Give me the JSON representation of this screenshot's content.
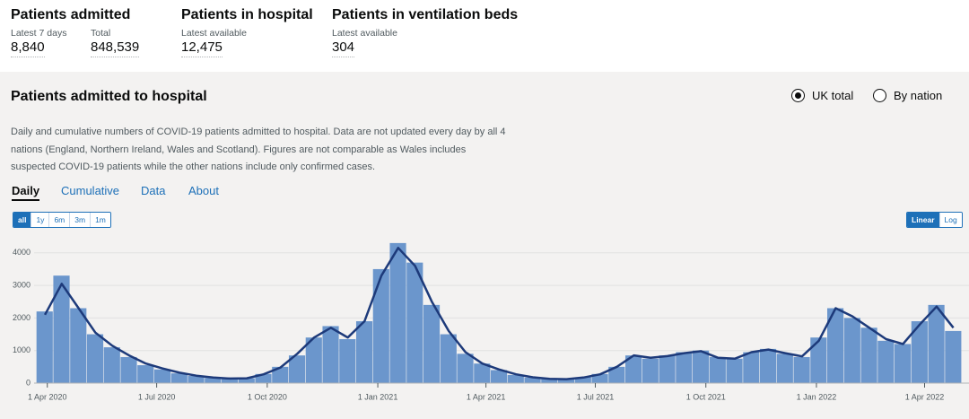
{
  "summary": [
    {
      "title": "Patients admitted",
      "items": [
        {
          "label": "Latest 7 days",
          "value": "8,840"
        },
        {
          "label": "Total",
          "value": "848,539"
        }
      ]
    },
    {
      "title": "Patients in hospital",
      "items": [
        {
          "label": "Latest available",
          "value": "12,475"
        }
      ]
    },
    {
      "title": "Patients in ventilation beds",
      "items": [
        {
          "label": "Latest available",
          "value": "304"
        }
      ]
    }
  ],
  "card": {
    "title": "Patients admitted to hospital",
    "options": [
      "UK total",
      "By nation"
    ],
    "selected_option": 0,
    "description": "Daily and cumulative numbers of COVID-19 patients admitted to hospital. Data are not updated every day by all 4 nations (England, Northern Ireland, Wales and Scotland). Figures are not comparable as Wales includes suspected COVID-19 patients while the other nations include only confirmed cases.",
    "tabs": [
      "Daily",
      "Cumulative",
      "Data",
      "About"
    ],
    "active_tab": 0,
    "timespans": [
      "all",
      "1y",
      "6m",
      "3m",
      "1m"
    ],
    "active_timespan": 0,
    "scales": [
      "Linear",
      "Log"
    ],
    "active_scale": 0
  },
  "chart_data": {
    "type": "bar",
    "x": [
      "2020-03-23",
      "2020-04-06",
      "2020-04-20",
      "2020-05-04",
      "2020-05-18",
      "2020-06-01",
      "2020-06-15",
      "2020-06-29",
      "2020-07-13",
      "2020-07-27",
      "2020-08-10",
      "2020-08-24",
      "2020-09-07",
      "2020-09-21",
      "2020-10-05",
      "2020-10-19",
      "2020-11-02",
      "2020-11-16",
      "2020-11-30",
      "2020-12-14",
      "2020-12-28",
      "2021-01-11",
      "2021-01-25",
      "2021-02-08",
      "2021-02-22",
      "2021-03-08",
      "2021-03-22",
      "2021-04-05",
      "2021-04-19",
      "2021-05-03",
      "2021-05-17",
      "2021-05-31",
      "2021-06-14",
      "2021-06-28",
      "2021-07-12",
      "2021-07-26",
      "2021-08-09",
      "2021-08-23",
      "2021-09-06",
      "2021-09-20",
      "2021-10-04",
      "2021-10-18",
      "2021-11-01",
      "2021-11-15",
      "2021-11-29",
      "2021-12-13",
      "2021-12-27",
      "2022-01-10",
      "2022-01-24",
      "2022-02-07",
      "2022-02-21",
      "2022-03-07",
      "2022-03-21",
      "2022-04-04",
      "2022-04-18"
    ],
    "series": [
      {
        "name": "Patients admitted",
        "color": "#6b96cc",
        "values": [
          2200,
          3300,
          2300,
          1500,
          1100,
          800,
          550,
          420,
          300,
          220,
          160,
          140,
          150,
          280,
          500,
          850,
          1400,
          1750,
          1350,
          1900,
          3500,
          4300,
          3700,
          2400,
          1500,
          900,
          600,
          400,
          250,
          170,
          130,
          130,
          180,
          280,
          500,
          850,
          750,
          850,
          950,
          1000,
          800,
          750,
          950,
          1050,
          900,
          800,
          1400,
          2300,
          2000,
          1700,
          1300,
          1200,
          1900,
          2400,
          1600
        ]
      },
      {
        "name": "7-day average",
        "color": "#1d3a7a",
        "values": [
          2100,
          3050,
          2300,
          1550,
          1150,
          850,
          600,
          450,
          320,
          230,
          170,
          140,
          150,
          270,
          480,
          900,
          1400,
          1700,
          1400,
          1900,
          3300,
          4150,
          3600,
          2500,
          1600,
          950,
          600,
          420,
          270,
          180,
          130,
          120,
          170,
          270,
          500,
          850,
          780,
          830,
          920,
          980,
          780,
          750,
          950,
          1030,
          920,
          820,
          1300,
          2300,
          2050,
          1700,
          1350,
          1200,
          1800,
          2350,
          1700
        ]
      }
    ],
    "xlim": [
      "2020-03-21",
      "2022-04-29"
    ],
    "xticks": [
      {
        "value": "2020-04-01",
        "label": "1 Apr 2020"
      },
      {
        "value": "2020-07-01",
        "label": "1 Jul 2020"
      },
      {
        "value": "2020-10-01",
        "label": "1 Oct 2020"
      },
      {
        "value": "2021-01-01",
        "label": "1 Jan 2021"
      },
      {
        "value": "2021-04-01",
        "label": "1 Apr 2021"
      },
      {
        "value": "2021-07-01",
        "label": "1 Jul 2021"
      },
      {
        "value": "2021-10-01",
        "label": "1 Oct 2021"
      },
      {
        "value": "2022-01-01",
        "label": "1 Jan 2022"
      },
      {
        "value": "2022-04-01",
        "label": "1 Apr 2022"
      }
    ],
    "ylim": [
      0,
      4600
    ],
    "yticks": [
      0,
      1000,
      2000,
      3000,
      4000
    ],
    "grid": true
  }
}
